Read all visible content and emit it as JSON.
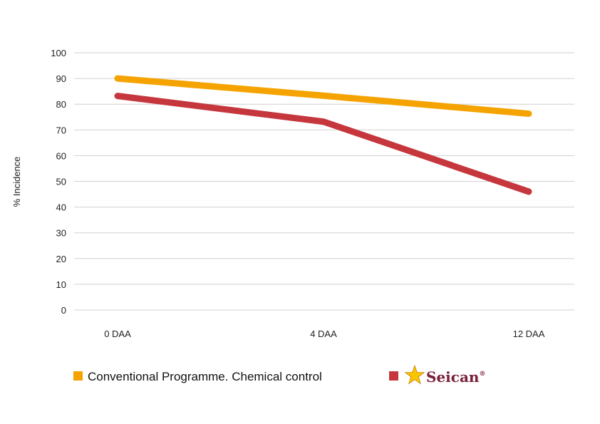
{
  "chart_data": {
    "type": "line",
    "categories": [
      "0 DAA",
      "4 DAA",
      "12 DAA"
    ],
    "series": [
      {
        "name": "Conventional Programme. Chemical control",
        "values": [
          90,
          83.3,
          76.3
        ],
        "color": "#F5A300"
      },
      {
        "name": "Seican",
        "values": [
          83.2,
          73.2,
          46
        ],
        "color": "#C6373D"
      }
    ],
    "ylabel": "% Incidence",
    "ylim": [
      0,
      100
    ],
    "yticks": [
      0,
      10,
      20,
      30,
      40,
      50,
      60,
      70,
      80,
      90,
      100
    ],
    "grid": true,
    "legend_position": "bottom",
    "brand": {
      "name": "Seican",
      "superscript": "®",
      "icon": "star-logo-icon",
      "color": "#7A1E3A",
      "star_color": "#F7C600"
    }
  }
}
